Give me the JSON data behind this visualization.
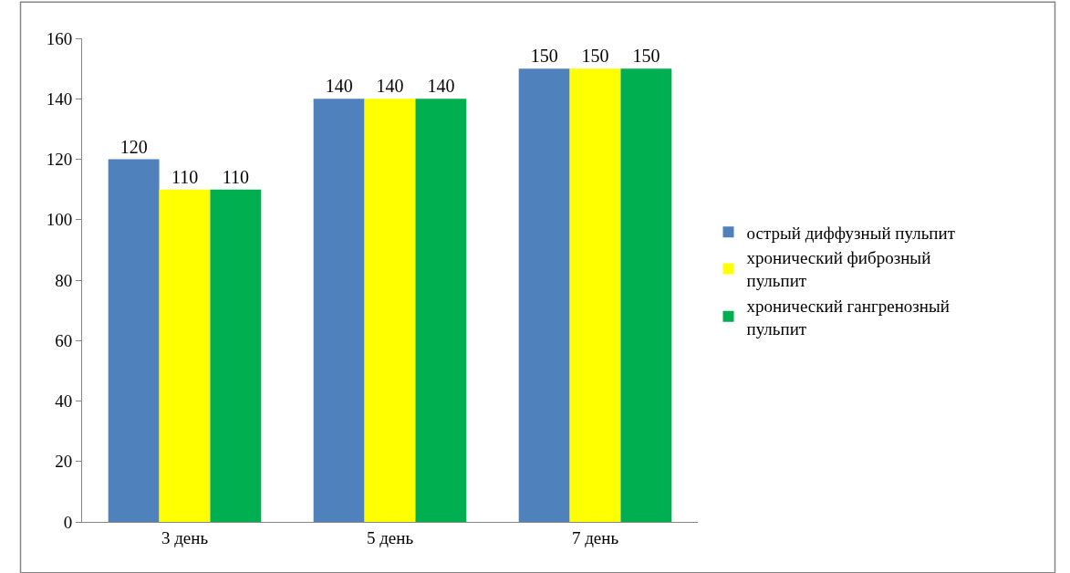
{
  "chart_data": {
    "type": "bar",
    "categories": [
      "3 день",
      "5 день",
      "7 день"
    ],
    "series": [
      {
        "name": "острый диффузный пульпит",
        "color": "#4f81bd",
        "values": [
          120,
          140,
          150
        ]
      },
      {
        "name": "хронический фиброзный пульпит",
        "color": "#ffff00",
        "values": [
          110,
          140,
          150
        ]
      },
      {
        "name": "хронический гангренозный пульпит",
        "color": "#00b050",
        "values": [
          110,
          140,
          150
        ]
      }
    ],
    "ylim": [
      0,
      160
    ],
    "yticks": [
      0,
      20,
      40,
      60,
      80,
      100,
      120,
      140,
      160
    ],
    "data_labels": true,
    "legend": "right"
  }
}
